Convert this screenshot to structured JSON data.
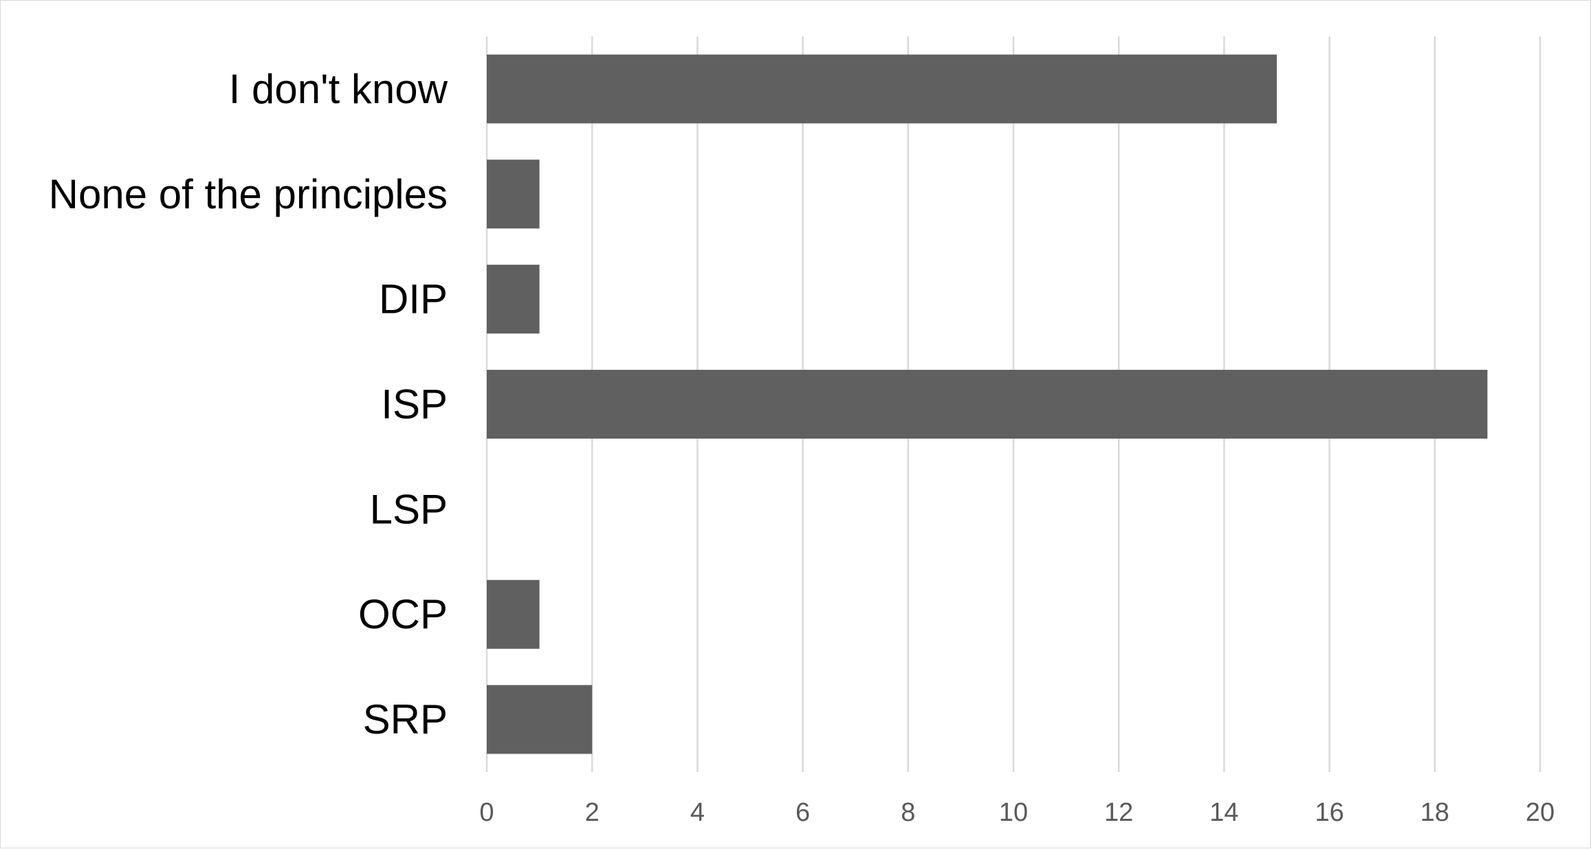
{
  "chart_data": {
    "type": "bar",
    "orientation": "horizontal",
    "title": "",
    "xlabel": "",
    "ylabel": "",
    "categories": [
      "SRP",
      "OCP",
      "LSP",
      "ISP",
      "DIP",
      "None of the principles",
      "I don't know"
    ],
    "values": [
      2,
      1,
      0,
      19,
      1,
      1,
      15
    ],
    "xlim": [
      0,
      20
    ],
    "x_ticks": [
      "0",
      "2",
      "4",
      "6",
      "8",
      "10",
      "12",
      "14",
      "16",
      "18",
      "20"
    ],
    "grid": "vertical",
    "legend": "none",
    "bar_color": "#606060",
    "grid_color": "#d9d9d9",
    "category_order": "bottom-to-top"
  }
}
